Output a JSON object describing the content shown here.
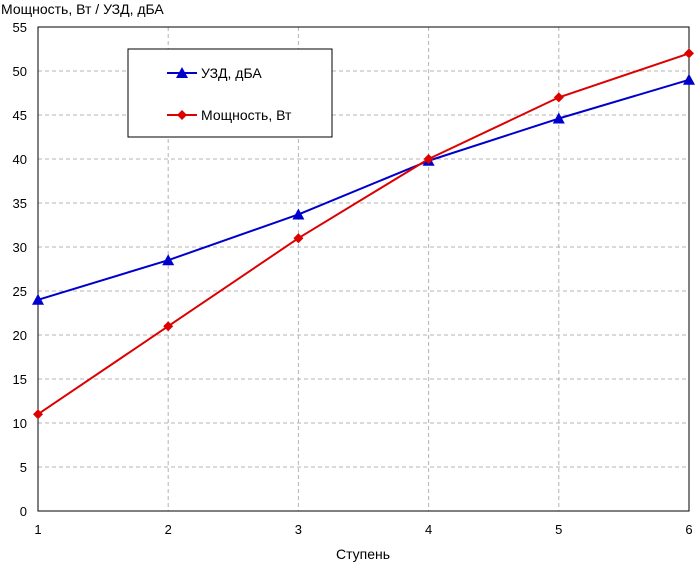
{
  "chart_data": {
    "type": "line",
    "ylabel": "Мощность, Вт / УЗД, дБА",
    "xlabel": "Ступень",
    "x": [
      1,
      2,
      3,
      4,
      5,
      6
    ],
    "xlim": [
      1,
      6
    ],
    "ylim": [
      0,
      55
    ],
    "y_ticks": [
      0,
      5,
      10,
      15,
      20,
      25,
      30,
      35,
      40,
      45,
      50,
      55
    ],
    "x_ticks": [
      1,
      2,
      3,
      4,
      5,
      6
    ],
    "grid": true,
    "legend_position": "top-left",
    "series": [
      {
        "name": "УЗД, дБА",
        "color": "#0000cc",
        "marker": "triangle",
        "values": [
          24,
          28.5,
          33.7,
          39.8,
          44.6,
          49
        ]
      },
      {
        "name": "Мощность, Вт",
        "color": "#dd0000",
        "marker": "diamond",
        "values": [
          11,
          21,
          31,
          40,
          47,
          52
        ]
      }
    ]
  }
}
